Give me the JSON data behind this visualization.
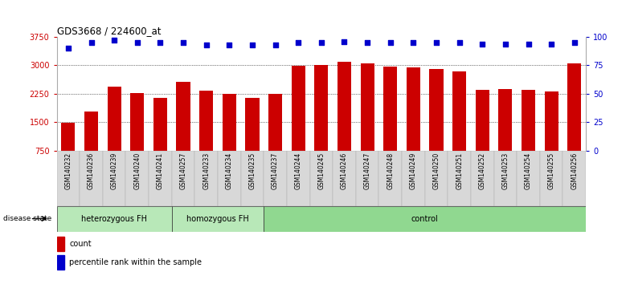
{
  "title": "GDS3668 / 224600_at",
  "samples": [
    "GSM140232",
    "GSM140236",
    "GSM140239",
    "GSM140240",
    "GSM140241",
    "GSM140257",
    "GSM140233",
    "GSM140234",
    "GSM140235",
    "GSM140237",
    "GSM140244",
    "GSM140245",
    "GSM140246",
    "GSM140247",
    "GSM140248",
    "GSM140249",
    "GSM140250",
    "GSM140251",
    "GSM140252",
    "GSM140253",
    "GSM140254",
    "GSM140255",
    "GSM140256"
  ],
  "counts": [
    1490,
    1790,
    2430,
    2260,
    2130,
    2570,
    2340,
    2240,
    2130,
    2250,
    2980,
    3010,
    3090,
    3060,
    2960,
    2940,
    2910,
    2840,
    2350,
    2380,
    2350,
    2310,
    3050
  ],
  "percentiles": [
    90,
    95,
    97,
    95,
    95,
    95,
    93,
    93,
    93,
    93,
    95,
    95,
    96,
    95,
    95,
    95,
    95,
    95,
    94,
    94,
    94,
    94,
    95
  ],
  "group_names": [
    "heterozygous FH",
    "homozygous FH",
    "control"
  ],
  "group_starts": [
    0,
    5,
    9
  ],
  "group_ends": [
    5,
    9,
    23
  ],
  "group_fill_colors": [
    "#b8e8b8",
    "#b8e8b8",
    "#90d890"
  ],
  "bar_color": "#CC0000",
  "dot_color": "#0000CC",
  "ylim_left": [
    750,
    3750
  ],
  "yticks_left": [
    750,
    1500,
    2250,
    3000,
    3750
  ],
  "ylim_right": [
    0,
    100
  ],
  "yticks_right": [
    0,
    25,
    50,
    75,
    100
  ],
  "ylabel_left_color": "#CC0000",
  "ylabel_right_color": "#0000CC",
  "background_color": "#ffffff",
  "xticklabel_bg": "#d8d8d8",
  "disease_state_label": "disease state",
  "legend_count_label": "count",
  "legend_pct_label": "percentile rank within the sample"
}
